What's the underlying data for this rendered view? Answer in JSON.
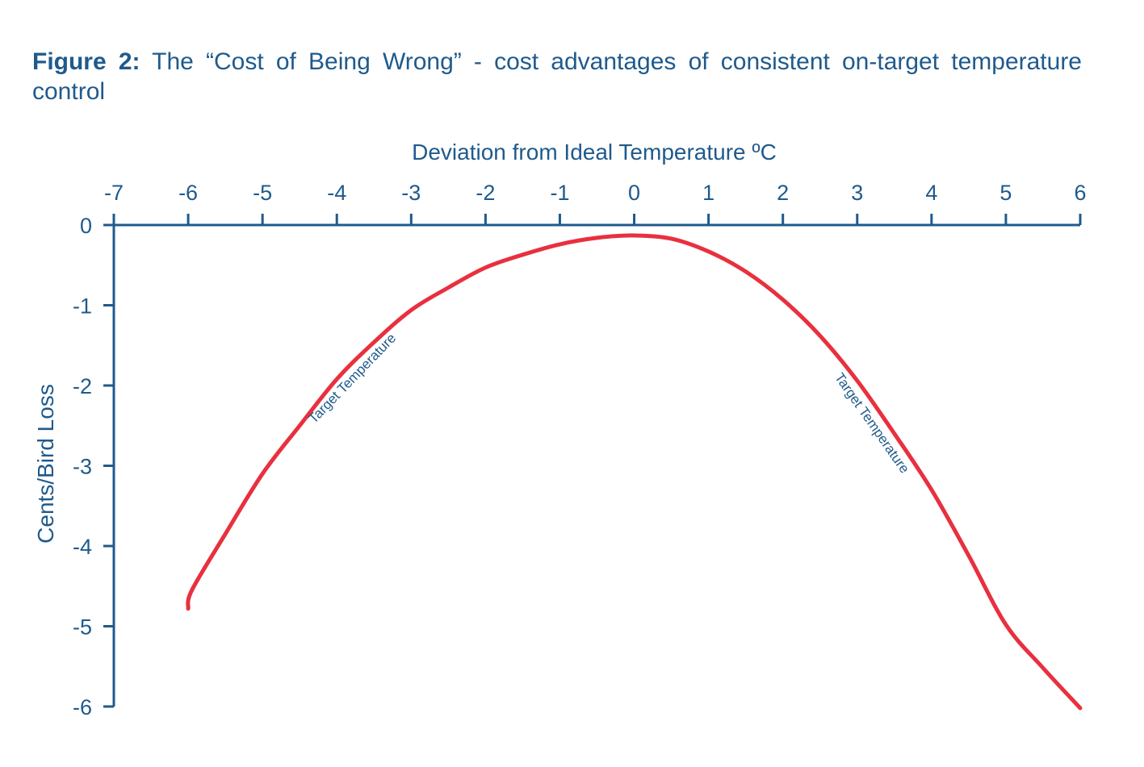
{
  "caption": {
    "figure_label": "Figure 2:",
    "text": "The “Cost of Being Wrong” - cost advantages of consistent on-target temperature control"
  },
  "chart_data": {
    "type": "line",
    "title": "",
    "xlabel": "Deviation from Ideal Temperature ºC",
    "ylabel": "Cents/Bird Loss",
    "xlim": [
      -7,
      6
    ],
    "ylim": [
      -6,
      0
    ],
    "x_ticks": [
      -7,
      -6,
      -5,
      -4,
      -3,
      -2,
      -1,
      0,
      1,
      2,
      3,
      4,
      5,
      6
    ],
    "y_ticks": [
      0,
      -1,
      -2,
      -3,
      -4,
      -5,
      -6
    ],
    "x_axis_position": "top",
    "grid": false,
    "legend": "none",
    "series": [
      {
        "color": "#e8303f",
        "x": [
          -6.0,
          -5.95,
          -5.5,
          -5.0,
          -4.5,
          -4.0,
          -3.5,
          -3.0,
          -2.5,
          -2.0,
          -1.5,
          -1.0,
          -0.5,
          0.0,
          0.5,
          1.0,
          1.5,
          2.0,
          2.5,
          3.0,
          3.5,
          4.0,
          4.5,
          5.0,
          5.5,
          6.0
        ],
        "y": [
          -4.78,
          -4.55,
          -3.85,
          -3.1,
          -2.5,
          -1.92,
          -1.46,
          -1.06,
          -0.78,
          -0.53,
          -0.37,
          -0.24,
          -0.16,
          -0.13,
          -0.17,
          -0.33,
          -0.58,
          -0.93,
          -1.38,
          -1.94,
          -2.6,
          -3.3,
          -4.12,
          -4.98,
          -5.52,
          -6.02
        ]
      }
    ],
    "annotations": [
      {
        "text": "Target Temperature",
        "x": -3.75,
        "y": -1.95,
        "angle": -46
      },
      {
        "text": "Target Temperature",
        "x": 3.15,
        "y": -2.5,
        "angle": 55
      }
    ]
  }
}
